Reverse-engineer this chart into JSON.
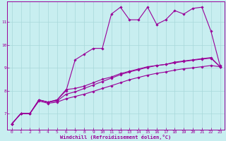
{
  "xlabel": "Windchill (Refroidissement éolien,°C)",
  "bg_color": "#c8eef0",
  "line_color": "#990099",
  "grid_color": "#b0d8da",
  "xlim": [
    -0.5,
    23.5
  ],
  "ylim": [
    6.3,
    11.9
  ],
  "xticks": [
    0,
    1,
    2,
    3,
    4,
    5,
    6,
    7,
    8,
    9,
    10,
    11,
    12,
    13,
    14,
    15,
    16,
    17,
    18,
    19,
    20,
    21,
    22,
    23
  ],
  "yticks": [
    7,
    8,
    9,
    10,
    11
  ],
  "series1_x": [
    0,
    1,
    2,
    3,
    4,
    5,
    6,
    7,
    8,
    9,
    10,
    11,
    12,
    13,
    14,
    15,
    16,
    17,
    18,
    19,
    20,
    21,
    22,
    23
  ],
  "series1_y": [
    6.55,
    7.0,
    7.0,
    7.6,
    7.5,
    7.6,
    8.0,
    9.35,
    9.6,
    9.85,
    9.85,
    11.35,
    11.65,
    11.1,
    11.1,
    11.65,
    10.9,
    11.1,
    11.5,
    11.35,
    11.6,
    11.65,
    10.6,
    9.1
  ],
  "series2_x": [
    0,
    1,
    2,
    3,
    4,
    5,
    6,
    7,
    8,
    9,
    10,
    11,
    12,
    13,
    14,
    15,
    16,
    17,
    18,
    19,
    20,
    21,
    22,
    23
  ],
  "series2_y": [
    6.55,
    7.0,
    7.0,
    7.6,
    7.5,
    7.6,
    8.05,
    8.1,
    8.2,
    8.35,
    8.5,
    8.6,
    8.75,
    8.85,
    8.95,
    9.05,
    9.1,
    9.15,
    9.25,
    9.3,
    9.35,
    9.4,
    9.45,
    9.05
  ],
  "series3_x": [
    0,
    1,
    2,
    3,
    4,
    5,
    6,
    7,
    8,
    9,
    10,
    11,
    12,
    13,
    14,
    15,
    16,
    17,
    18,
    19,
    20,
    21,
    22,
    23
  ],
  "series3_y": [
    6.55,
    7.0,
    7.0,
    7.6,
    7.5,
    7.55,
    7.85,
    7.95,
    8.1,
    8.25,
    8.4,
    8.55,
    8.7,
    8.82,
    8.92,
    9.02,
    9.1,
    9.15,
    9.22,
    9.28,
    9.33,
    9.38,
    9.42,
    9.05
  ],
  "series4_x": [
    0,
    1,
    2,
    3,
    4,
    5,
    6,
    7,
    8,
    9,
    10,
    11,
    12,
    13,
    14,
    15,
    16,
    17,
    18,
    19,
    20,
    21,
    22,
    23
  ],
  "series4_y": [
    6.55,
    7.0,
    7.0,
    7.55,
    7.45,
    7.5,
    7.65,
    7.75,
    7.85,
    7.97,
    8.1,
    8.22,
    8.35,
    8.48,
    8.58,
    8.68,
    8.76,
    8.82,
    8.9,
    8.96,
    9.0,
    9.05,
    9.1,
    9.05
  ]
}
